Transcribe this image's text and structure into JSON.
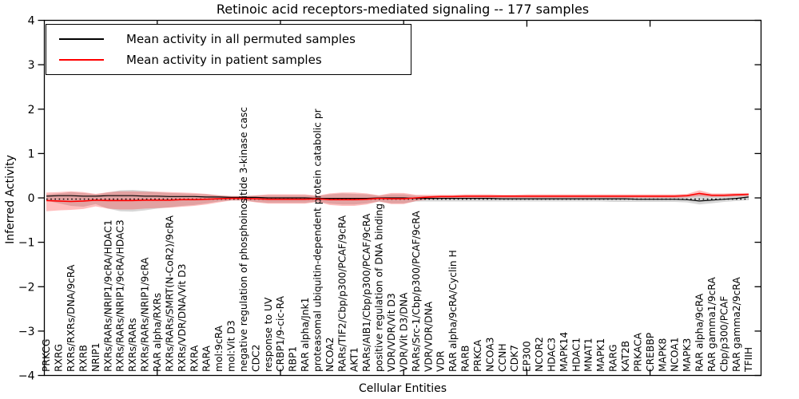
{
  "figure": {
    "title": "Retinoic acid receptors-mediated signaling -- 177 samples",
    "xlabel": "Cellular Entities",
    "ylabel": "Inferred Activity"
  },
  "legend": {
    "entries": [
      {
        "label": "Mean activity in all permuted samples",
        "color": "#000000"
      },
      {
        "label": "Mean activity in patient samples",
        "color": "#ff0000"
      }
    ]
  },
  "chart_data": {
    "type": "line",
    "title": "Retinoic acid receptors-mediated signaling -- 177 samples",
    "xlabel": "Cellular Entities",
    "ylabel": "Inferred Activity",
    "ylim": [
      -4,
      4
    ],
    "yticks": [
      -4,
      -3,
      -2,
      -1,
      0,
      1,
      2,
      3,
      4
    ],
    "grid": false,
    "legend_position": "upper left",
    "zero_reference_line": {
      "y": 0,
      "style": "dotted",
      "color": "#000000"
    },
    "categories": [
      "PRKCG",
      "RXRG",
      "RXRs/RXRs/DNA/9cRA",
      "RXRB",
      "NRIP1",
      "RXRs/RARs/NRIP1/9cRA/HDAC1",
      "RXRs/RARs/NRIP1/9cRA/HDAC3",
      "RXRs/RARs",
      "RXRs/RARs/NRIP1/9cRA",
      "RAR alpha/RXRs",
      "RXRs/RARs/SMRT(N-CoR2)/9cRA",
      "RXRs/VDR/DNA/Vit D3",
      "RXRA",
      "RARA",
      "mol:9cRA",
      "mol:Vit D3",
      "negative regulation of phosphoinositide 3-kinase casc",
      "CDC2",
      "response to UV",
      "CRBP1/9-cic-RA",
      "RBP1",
      "RAR alpha/Jnk1",
      "proteasomal ubiquitin-dependent protein catabolic pr",
      "NCOA2",
      "RARs/TIF2/Cbp/p300/PCAF/9cRA",
      "AKT1",
      "RARs/AIB1/Cbp/p300/PCAF/9cRA",
      "positive regulation of DNA binding",
      "VDR/VDR/Vit D3",
      "VDR/Vit D3/DNA",
      "RARs/Src-1/Cbp/p300/PCAF/9cRA",
      "VDR/VDR/DNA",
      "VDR",
      "RAR alpha/9cRA/Cyclin H",
      "RARB",
      "PRKCA",
      "NCOA3",
      "CCNH",
      "CDK7",
      "EP300",
      "NCOR2",
      "HDAC3",
      "MAPK14",
      "HDAC1",
      "MNAT1",
      "MAPK1",
      "RARG",
      "KAT2B",
      "PRKACA",
      "CREBBP",
      "MAPK8",
      "NCOA1",
      "MAPK3",
      "RAR alpha/9cRA",
      "RAR gamma1/9cRA",
      "Cbp/p300/PCAF",
      "RAR gamma2/9cRA",
      "TFIIH"
    ],
    "series": [
      {
        "name": "Mean activity in all permuted samples",
        "color": "#000000",
        "style": "solid",
        "values": [
          0.04,
          0.05,
          0.05,
          0.04,
          0.04,
          0.05,
          0.05,
          0.05,
          0.04,
          0.04,
          0.03,
          0.03,
          0.03,
          0.02,
          0.02,
          0.01,
          0.01,
          0.01,
          0.0,
          0.0,
          0.0,
          0.0,
          -0.01,
          -0.01,
          -0.01,
          -0.01,
          -0.01,
          0.0,
          0.0,
          0.0,
          -0.01,
          -0.01,
          -0.01,
          -0.01,
          -0.01,
          -0.01,
          -0.01,
          -0.02,
          -0.02,
          -0.02,
          -0.02,
          -0.02,
          -0.02,
          -0.02,
          -0.02,
          -0.02,
          -0.02,
          -0.02,
          -0.03,
          -0.03,
          -0.03,
          -0.03,
          -0.04,
          -0.07,
          -0.05,
          -0.03,
          -0.01,
          0.02
        ]
      },
      {
        "name": "Mean activity in patient samples",
        "color": "#ff0000",
        "style": "solid",
        "values": [
          -0.06,
          -0.07,
          -0.08,
          -0.07,
          -0.05,
          -0.06,
          -0.06,
          -0.06,
          -0.05,
          -0.05,
          -0.05,
          -0.04,
          -0.04,
          -0.03,
          -0.02,
          -0.01,
          -0.01,
          -0.02,
          -0.03,
          -0.03,
          -0.03,
          -0.03,
          -0.02,
          -0.04,
          -0.04,
          -0.04,
          -0.03,
          -0.01,
          -0.02,
          -0.02,
          0.0,
          0.02,
          0.03,
          0.03,
          0.04,
          0.04,
          0.04,
          0.04,
          0.04,
          0.04,
          0.04,
          0.04,
          0.04,
          0.04,
          0.04,
          0.04,
          0.04,
          0.04,
          0.04,
          0.04,
          0.04,
          0.04,
          0.05,
          0.1,
          0.06,
          0.06,
          0.07,
          0.08
        ]
      }
    ],
    "bands": [
      {
        "name": "permuted samples std band",
        "color": "rgba(110,110,110,0.28)",
        "upper": [
          0.08,
          0.1,
          0.13,
          0.11,
          0.08,
          0.12,
          0.17,
          0.18,
          0.16,
          0.13,
          0.11,
          0.1,
          0.09,
          0.08,
          0.06,
          0.04,
          0.04,
          0.05,
          0.06,
          0.06,
          0.06,
          0.06,
          0.04,
          0.08,
          0.1,
          0.09,
          0.08,
          0.05,
          0.08,
          0.08,
          0.05,
          0.04,
          0.04,
          0.04,
          0.04,
          0.04,
          0.04,
          0.04,
          0.04,
          0.04,
          0.04,
          0.04,
          0.04,
          0.04,
          0.04,
          0.04,
          0.04,
          0.04,
          0.04,
          0.04,
          0.04,
          0.04,
          0.05,
          0.09,
          0.06,
          0.05,
          0.06,
          0.07
        ],
        "lower": [
          -0.06,
          -0.12,
          -0.18,
          -0.2,
          -0.14,
          -0.24,
          -0.3,
          -0.31,
          -0.28,
          -0.24,
          -0.21,
          -0.18,
          -0.16,
          -0.12,
          -0.08,
          -0.06,
          -0.06,
          -0.09,
          -0.11,
          -0.11,
          -0.11,
          -0.11,
          -0.08,
          -0.13,
          -0.15,
          -0.15,
          -0.12,
          -0.08,
          -0.12,
          -0.12,
          -0.08,
          -0.08,
          -0.08,
          -0.08,
          -0.08,
          -0.08,
          -0.08,
          -0.08,
          -0.08,
          -0.08,
          -0.08,
          -0.08,
          -0.08,
          -0.08,
          -0.08,
          -0.08,
          -0.09,
          -0.09,
          -0.09,
          -0.09,
          -0.09,
          -0.09,
          -0.1,
          -0.15,
          -0.12,
          -0.09,
          -0.07,
          -0.05
        ]
      },
      {
        "name": "patient samples std band",
        "color": "rgba(255,20,20,0.28)",
        "upper": [
          0.12,
          0.13,
          0.15,
          0.13,
          0.09,
          0.13,
          0.15,
          0.15,
          0.14,
          0.14,
          0.13,
          0.12,
          0.11,
          0.09,
          0.06,
          0.04,
          0.04,
          0.06,
          0.08,
          0.08,
          0.08,
          0.08,
          0.05,
          0.1,
          0.12,
          0.12,
          0.1,
          0.06,
          0.11,
          0.11,
          0.07,
          0.07,
          0.07,
          0.07,
          0.08,
          0.08,
          0.08,
          0.07,
          0.07,
          0.08,
          0.08,
          0.08,
          0.08,
          0.08,
          0.08,
          0.08,
          0.08,
          0.08,
          0.08,
          0.08,
          0.08,
          0.08,
          0.09,
          0.17,
          0.1,
          0.1,
          0.11,
          0.11
        ],
        "lower": [
          -0.3,
          -0.28,
          -0.27,
          -0.25,
          -0.19,
          -0.24,
          -0.26,
          -0.26,
          -0.24,
          -0.23,
          -0.22,
          -0.2,
          -0.18,
          -0.15,
          -0.1,
          -0.06,
          -0.06,
          -0.1,
          -0.13,
          -0.13,
          -0.13,
          -0.13,
          -0.09,
          -0.16,
          -0.18,
          -0.18,
          -0.15,
          -0.08,
          -0.14,
          -0.14,
          -0.07,
          -0.03,
          -0.01,
          -0.01,
          0.0,
          0.0,
          0.0,
          0.0,
          0.0,
          0.0,
          0.0,
          0.0,
          0.0,
          0.0,
          0.0,
          0.0,
          0.0,
          0.0,
          0.0,
          0.0,
          0.0,
          0.0,
          0.01,
          0.04,
          0.02,
          0.02,
          0.03,
          0.04
        ]
      }
    ]
  }
}
